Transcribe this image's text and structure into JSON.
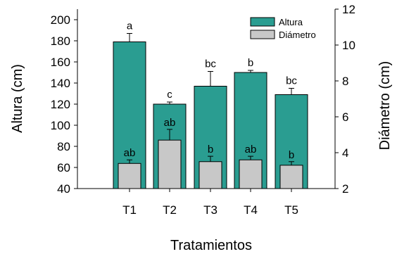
{
  "chart_data": {
    "type": "bar",
    "categories": [
      "T1",
      "T2",
      "T3",
      "T4",
      "T5"
    ],
    "xlabel": "Tratamientos",
    "ylabel_left": "Altura (cm)",
    "ylabel_right": "Diámetro (cm)",
    "ylim_left": [
      40,
      210
    ],
    "ylim_right": [
      2,
      12
    ],
    "yticks_left": [
      40,
      60,
      80,
      100,
      120,
      140,
      160,
      180,
      200
    ],
    "yticks_right": [
      2,
      4,
      6,
      8,
      10,
      12
    ],
    "legend_position": "top-right",
    "series": [
      {
        "name": "Altura",
        "axis": "left",
        "color": "#2a9d91",
        "values": [
          179,
          120,
          137,
          150,
          129
        ],
        "errors": [
          8,
          2,
          14,
          2,
          6
        ],
        "letters": [
          "a",
          "c",
          "bc",
          "b",
          "bc"
        ]
      },
      {
        "name": "Diámetro",
        "axis": "right",
        "color": "#c8c8c8",
        "values": [
          3.4,
          4.7,
          3.5,
          3.6,
          3.3
        ],
        "errors": [
          0.2,
          0.6,
          0.3,
          0.2,
          0.2
        ],
        "letters": [
          "ab",
          "ab",
          "b",
          "ab",
          "b"
        ]
      }
    ]
  }
}
